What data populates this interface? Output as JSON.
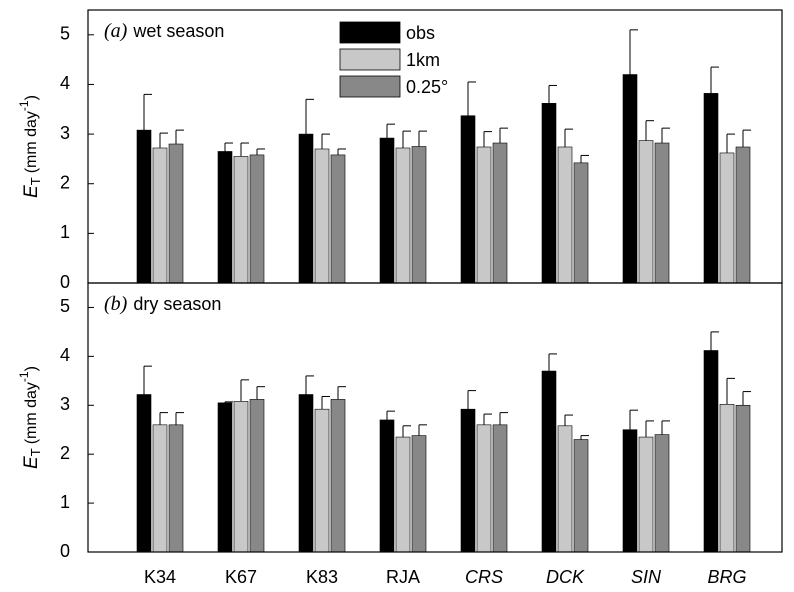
{
  "chart_data": [
    {
      "type": "bar",
      "label": "(a)",
      "title": "wet season",
      "y_label": {
        "symbol": "E",
        "sub": "T",
        "unit": "(mm day",
        "sup": "-1",
        "close": ")"
      },
      "ylim": [
        0,
        5.5
      ],
      "yticks": [
        0,
        1,
        2,
        3,
        4,
        5
      ],
      "legend": "upper center",
      "series": [
        {
          "name": "obs",
          "color": "#000000",
          "values": [
            3.08,
            2.65,
            3.0,
            2.92,
            3.37,
            3.62,
            4.2,
            3.82
          ],
          "errors": [
            0.72,
            0.17,
            0.7,
            0.28,
            0.68,
            0.36,
            0.9,
            0.53
          ]
        },
        {
          "name": "1km",
          "color": "#c8c8c8",
          "values": [
            2.72,
            2.55,
            2.7,
            2.72,
            2.74,
            2.74,
            2.87,
            2.62
          ],
          "errors": [
            0.3,
            0.27,
            0.3,
            0.34,
            0.31,
            0.36,
            0.4,
            0.38
          ]
        },
        {
          "name": "0.25°",
          "color": "#888888",
          "values": [
            2.8,
            2.58,
            2.58,
            2.75,
            2.82,
            2.42,
            2.82,
            2.74
          ],
          "errors": [
            0.28,
            0.12,
            0.12,
            0.31,
            0.3,
            0.15,
            0.3,
            0.34
          ]
        }
      ]
    },
    {
      "type": "bar",
      "label": "(b)",
      "title": "dry season",
      "y_label": {
        "symbol": "E",
        "sub": "T",
        "unit": "(mm day",
        "sup": "-1",
        "close": ")"
      },
      "ylim": [
        0,
        5.5
      ],
      "yticks": [
        0,
        1,
        2,
        3,
        4,
        5
      ],
      "categories": [
        "K34",
        "K67",
        "K83",
        "RJA",
        "CRS",
        "DCK",
        "SIN",
        "BRG"
      ],
      "italic_categories": [
        false,
        false,
        false,
        false,
        true,
        true,
        true,
        true
      ],
      "series": [
        {
          "color": "#000000",
          "values": [
            3.22,
            3.05,
            3.22,
            2.7,
            2.92,
            3.7,
            2.5,
            4.12
          ],
          "errors": [
            0.58,
            0.02,
            0.38,
            0.18,
            0.38,
            0.35,
            0.4,
            0.38
          ]
        },
        {
          "color": "#c8c8c8",
          "values": [
            2.6,
            3.08,
            2.92,
            2.35,
            2.6,
            2.58,
            2.35,
            3.02
          ],
          "errors": [
            0.25,
            0.44,
            0.26,
            0.23,
            0.22,
            0.22,
            0.33,
            0.53
          ]
        },
        {
          "color": "#888888",
          "values": [
            2.6,
            3.12,
            3.12,
            2.38,
            2.6,
            2.3,
            2.4,
            3.0
          ],
          "errors": [
            0.25,
            0.26,
            0.26,
            0.22,
            0.25,
            0.08,
            0.28,
            0.28
          ]
        }
      ]
    }
  ]
}
